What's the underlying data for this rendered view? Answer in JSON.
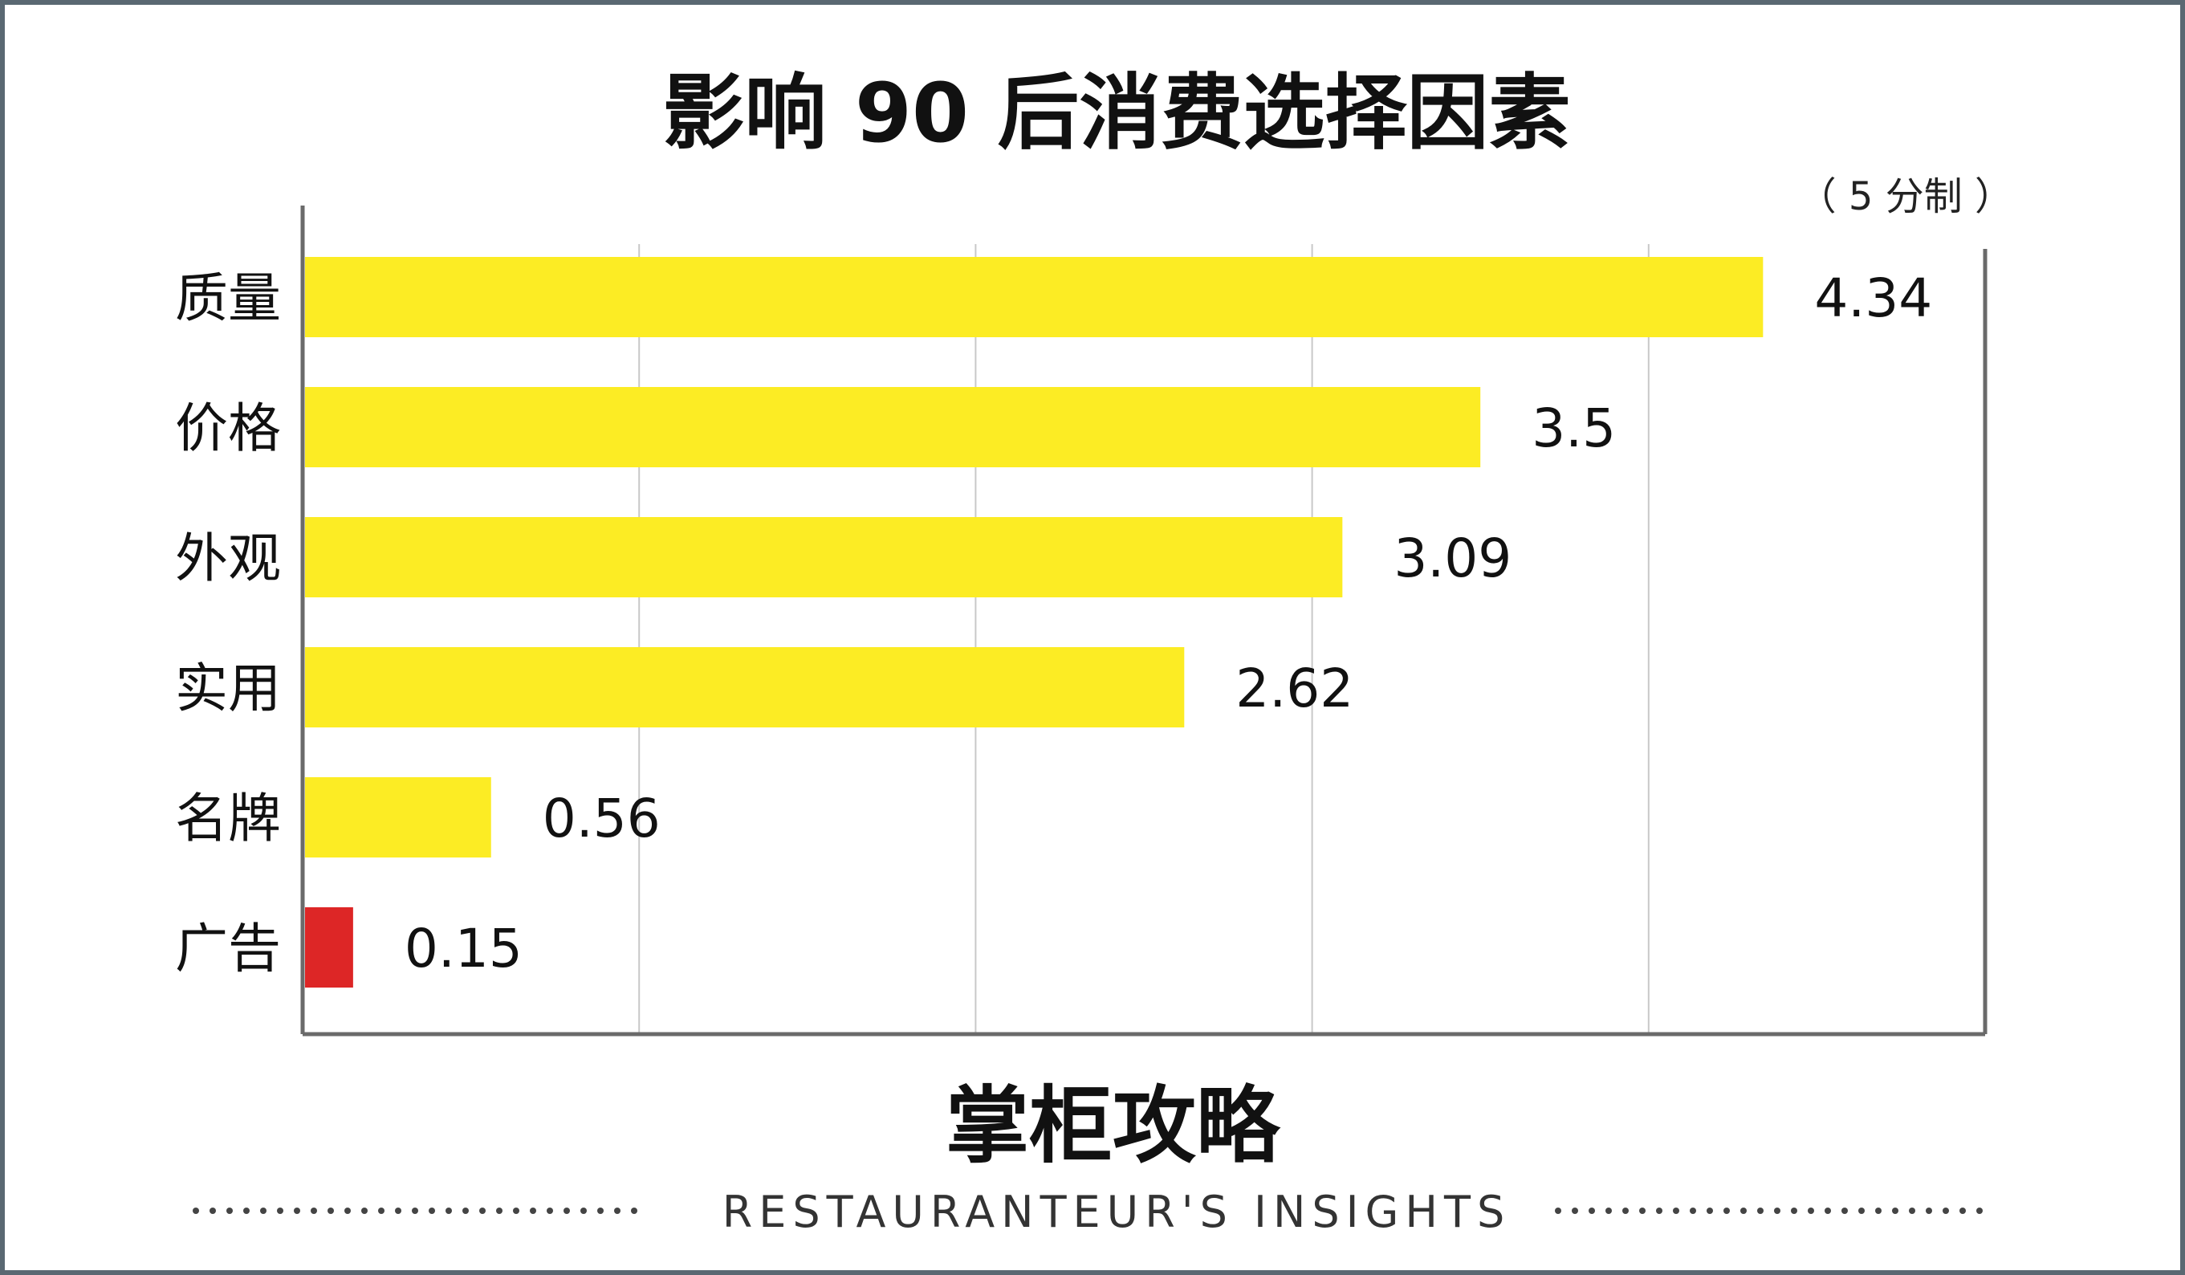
{
  "chart_data": {
    "type": "bar",
    "orientation": "horizontal",
    "title": "影响 90 后消费选择因素",
    "unit_note": "（ 5 分制 ）",
    "categories": [
      "质量",
      "价格",
      "外观",
      "实用",
      "名牌",
      "广告"
    ],
    "values": [
      4.34,
      3.5,
      3.09,
      2.62,
      0.56,
      0.15
    ],
    "value_labels": [
      "4.34",
      "3.5",
      "3.09",
      "2.62",
      "0.56",
      "0.15"
    ],
    "bar_colors": [
      "#fcec24",
      "#fcec24",
      "#fcec24",
      "#fcec24",
      "#fcec24",
      "#dd2626"
    ],
    "xlim": [
      0,
      5
    ],
    "grid": true,
    "xlabel": "",
    "ylabel": ""
  },
  "footer": {
    "brand": "掌柜攻略",
    "tagline": "RESTAURANTEUR'S   INSIGHTS"
  }
}
